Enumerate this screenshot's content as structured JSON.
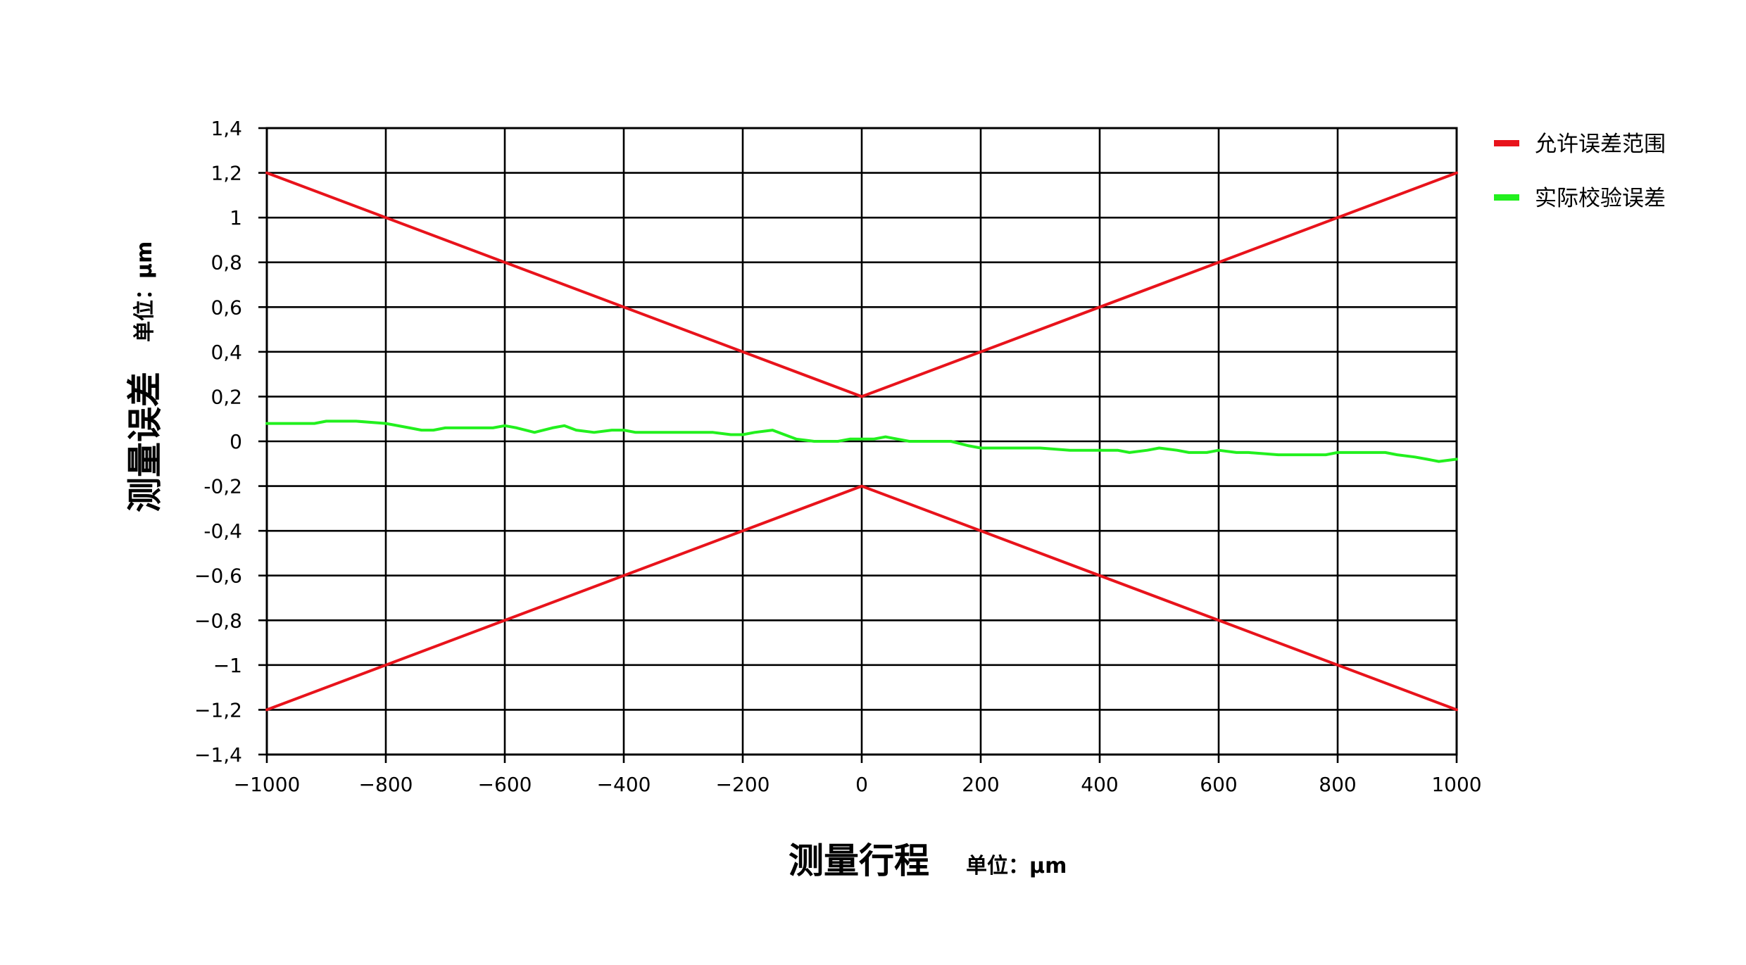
{
  "chart_data": {
    "type": "line",
    "xlabel": "测量行程",
    "xunit": "单位：μm",
    "ylabel": "测量误差",
    "yunit": "单位：μm",
    "xlim": [
      -1000,
      1000
    ],
    "ylim": [
      -1.4,
      1.4
    ],
    "grid": true,
    "legend_position": "top-right",
    "x_ticks": [
      -1000,
      -800,
      -600,
      -400,
      -200,
      0,
      200,
      400,
      600,
      800,
      1000
    ],
    "x_tick_labels": [
      "−1000",
      "−800",
      "−600",
      "−400",
      "−200",
      "0",
      "200",
      "400",
      "600",
      "800",
      "1000"
    ],
    "y_ticks": [
      1.4,
      1.2,
      1,
      0.8,
      0.6,
      0.4,
      0.2,
      0,
      -0.2,
      -0.4,
      -0.6,
      -0.8,
      -1,
      -1.2,
      -1.4
    ],
    "y_tick_labels": [
      "1,4",
      "1,2",
      "1",
      "0,8",
      "0,6",
      "0,4",
      "0,2",
      "0",
      "-0,2",
      "-0,4",
      "−0,6",
      "−0,8",
      "−1",
      "−1,2",
      "−1,4"
    ],
    "series": [
      {
        "name": "允许误差范围",
        "color": "#e8131b",
        "style": "upper-limit",
        "x": [
          -1000,
          0,
          1000
        ],
        "y": [
          1.2,
          0.2,
          1.2
        ]
      },
      {
        "name": "允许误差范围",
        "color": "#e8131b",
        "style": "lower-limit",
        "x": [
          -1000,
          0,
          1000
        ],
        "y": [
          -1.2,
          -0.2,
          -1.2
        ]
      },
      {
        "name": "实际校验误差",
        "color": "#22f01e",
        "style": "measured",
        "x": [
          -1000,
          -920,
          -900,
          -850,
          -800,
          -760,
          -740,
          -720,
          -700,
          -650,
          -620,
          -600,
          -580,
          -550,
          -520,
          -500,
          -480,
          -450,
          -420,
          -400,
          -380,
          -350,
          -320,
          -300,
          -280,
          -250,
          -220,
          -200,
          -180,
          -150,
          -130,
          -110,
          -80,
          -60,
          -40,
          -20,
          0,
          20,
          40,
          60,
          80,
          100,
          120,
          150,
          180,
          200,
          250,
          300,
          350,
          400,
          430,
          450,
          480,
          500,
          530,
          550,
          580,
          600,
          630,
          650,
          700,
          720,
          750,
          780,
          800,
          850,
          880,
          900,
          930,
          950,
          970,
          1000
        ],
        "y": [
          0.08,
          0.08,
          0.09,
          0.09,
          0.08,
          0.06,
          0.05,
          0.05,
          0.06,
          0.06,
          0.06,
          0.07,
          0.06,
          0.04,
          0.06,
          0.07,
          0.05,
          0.04,
          0.05,
          0.05,
          0.04,
          0.04,
          0.04,
          0.04,
          0.04,
          0.04,
          0.03,
          0.03,
          0.04,
          0.05,
          0.03,
          0.01,
          0.0,
          0.0,
          0.0,
          0.01,
          0.01,
          0.01,
          0.02,
          0.01,
          0.0,
          0.0,
          0.0,
          0.0,
          -0.02,
          -0.03,
          -0.03,
          -0.03,
          -0.04,
          -0.04,
          -0.04,
          -0.05,
          -0.04,
          -0.03,
          -0.04,
          -0.05,
          -0.05,
          -0.04,
          -0.05,
          -0.05,
          -0.06,
          -0.06,
          -0.06,
          -0.06,
          -0.05,
          -0.05,
          -0.05,
          -0.06,
          -0.07,
          -0.08,
          -0.09,
          -0.08
        ]
      }
    ],
    "legend": [
      {
        "label": "允许误差范围",
        "color": "#e8131b"
      },
      {
        "label": "实际校验误差",
        "color": "#22f01e"
      }
    ]
  }
}
